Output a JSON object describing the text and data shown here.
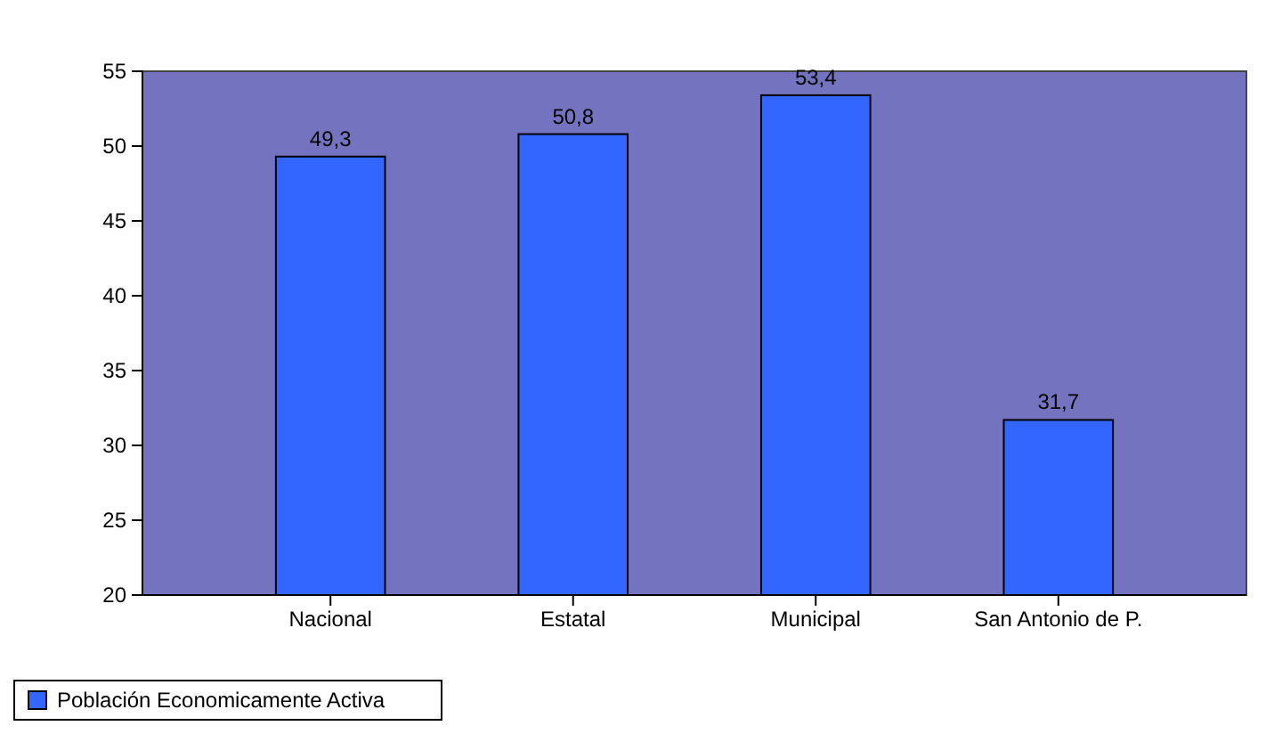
{
  "chart_data": {
    "type": "bar",
    "categories": [
      "Nacional",
      "Estatal",
      "Municipal",
      "San Antonio de P."
    ],
    "series": [
      {
        "name": "Población Economicamente Activa",
        "color": "#3366ff",
        "values": [
          49.3,
          50.8,
          53.4,
          31.7
        ],
        "value_labels": [
          "49,3",
          "50,8",
          "53,4",
          "31,7"
        ]
      }
    ],
    "ylim": [
      20,
      55
    ],
    "yticks": [
      20,
      25,
      30,
      35,
      40,
      45,
      50,
      55
    ],
    "legend": "bottom left",
    "grid": false
  }
}
